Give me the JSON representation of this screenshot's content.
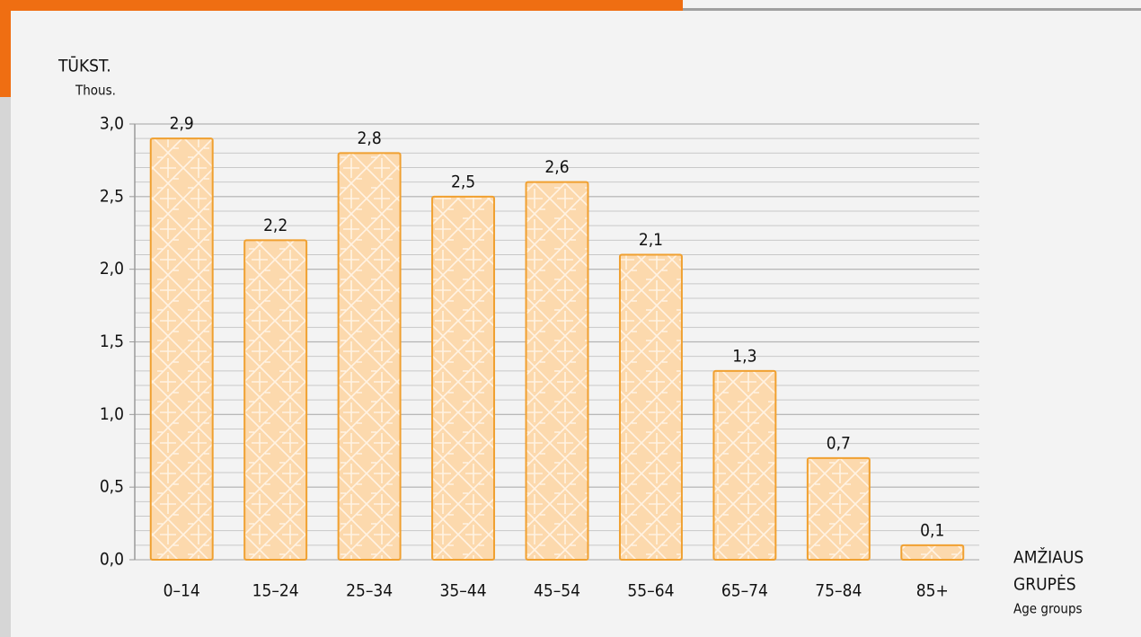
{
  "chart_data": {
    "type": "bar",
    "ylabel": "TŪKST.",
    "ylabel_en": "Thous.",
    "xlabel": [
      "AMŽIAUS",
      "GRUPĖS"
    ],
    "xlabel_en": "Age groups",
    "categories": [
      "0–14",
      "15–24",
      "25–34",
      "35–44",
      "45–54",
      "55–64",
      "65–74",
      "75–84",
      "85+"
    ],
    "values": [
      2.9,
      2.2,
      2.8,
      2.5,
      2.6,
      2.1,
      1.3,
      0.7,
      0.1
    ],
    "value_labels": [
      "2,9",
      "2,2",
      "2,8",
      "2,5",
      "2,6",
      "2,1",
      "1,3",
      "0,7",
      "0,1"
    ],
    "color": "#fcd9ad",
    "edge_color": "#f0a030",
    "ylim": [
      0,
      3.0
    ],
    "yticks": [
      {
        "value": 0,
        "label": "0,0"
      },
      {
        "value": 0.5,
        "label": "0,5"
      },
      {
        "value": 1.0,
        "label": "1,0"
      },
      {
        "value": 1.5,
        "label": "1,5"
      },
      {
        "value": 2.0,
        "label": "2,0"
      },
      {
        "value": 2.5,
        "label": "2,5"
      },
      {
        "value": 3.0,
        "label": "3,0"
      }
    ],
    "grid": true,
    "minor_grid_step": 0.1
  }
}
